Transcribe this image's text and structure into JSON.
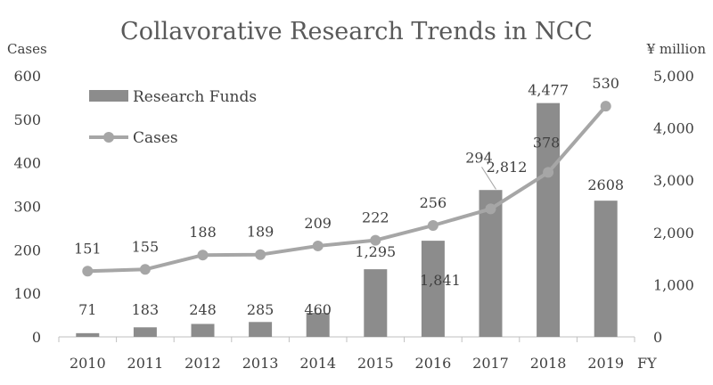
{
  "chart_data": {
    "type": "bar+line",
    "title": "Collavorative Research Trends in NCC",
    "categories": [
      "2010",
      "2011",
      "2012",
      "2013",
      "2014",
      "2015",
      "2016",
      "2017",
      "2018",
      "2019"
    ],
    "xlabel": "FY",
    "y_left": {
      "label": "Cases",
      "range": [
        0,
        600
      ],
      "ticks": [
        "0",
        "100",
        "200",
        "300",
        "400",
        "500",
        "600"
      ]
    },
    "y_right": {
      "label": "¥ million",
      "range": [
        0,
        5000
      ],
      "ticks": [
        "0",
        "1,000",
        "2,000",
        "3,000",
        "4,000",
        "5,000"
      ]
    },
    "series": [
      {
        "name": "Research Funds",
        "type": "bar",
        "axis": "right",
        "color": "#8c8c8c",
        "values": [
          71,
          183,
          248,
          285,
          460,
          1295,
          1841,
          2812,
          4477,
          2608
        ],
        "data_labels": [
          "71",
          "183",
          "248",
          "285",
          "460",
          "1,295",
          "1,841",
          "2,812",
          "4,477",
          "2608"
        ]
      },
      {
        "name": "Cases",
        "type": "line",
        "axis": "left",
        "color": "#a6a6a6",
        "values": [
          151,
          155,
          188,
          189,
          209,
          222,
          256,
          294,
          378,
          530
        ],
        "data_labels": [
          "151",
          "155",
          "188",
          "189",
          "209",
          "222",
          "256",
          "294",
          "378",
          "530"
        ]
      }
    ],
    "legend": "top-left",
    "grid": false
  }
}
